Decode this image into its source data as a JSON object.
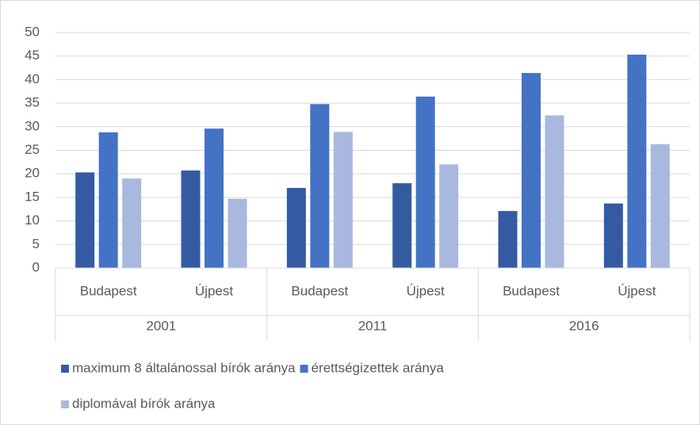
{
  "chart_data": {
    "type": "bar",
    "categories": [
      "Budapest",
      "Újpest",
      "Budapest",
      "Újpest",
      "Budapest",
      "Újpest"
    ],
    "category_groups": [
      {
        "label": "2001",
        "span": 2
      },
      {
        "label": "2011",
        "span": 2
      },
      {
        "label": "2016",
        "span": 2
      }
    ],
    "series": [
      {
        "name": "maximum 8 általánossal bírók aránya",
        "color": "#345ba1",
        "values": [
          20.3,
          20.7,
          17.0,
          18.0,
          12.1,
          13.7
        ]
      },
      {
        "name": "érettségizettek aránya",
        "color": "#4472c4",
        "values": [
          28.8,
          29.6,
          34.8,
          36.4,
          41.4,
          45.3
        ]
      },
      {
        "name": "diplomával bírók aránya",
        "color": "#a9b8de",
        "values": [
          19.0,
          14.7,
          28.9,
          22.0,
          32.4,
          26.3
        ]
      }
    ],
    "ylim": [
      0,
      50
    ],
    "yticks": [
      0,
      5,
      10,
      15,
      20,
      25,
      30,
      35,
      40,
      45,
      50
    ],
    "grid": true,
    "legend": "bottom"
  }
}
